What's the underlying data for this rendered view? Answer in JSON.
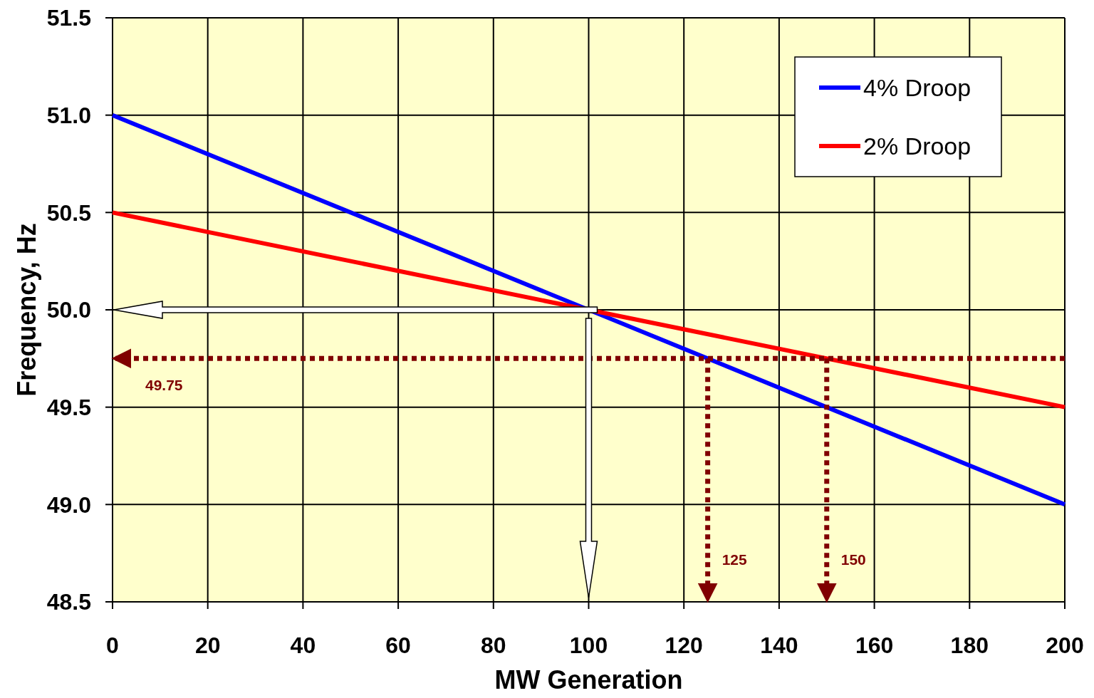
{
  "chart_data": {
    "type": "line",
    "xlabel": "MW Generation",
    "ylabel": "Frequency, Hz",
    "xlim": [
      0,
      200
    ],
    "xticks": [
      0,
      20,
      40,
      60,
      80,
      100,
      120,
      140,
      160,
      180,
      200
    ],
    "x": [
      0,
      200
    ],
    "ylim": [
      48.5,
      51.5
    ],
    "yticks": [
      48.5,
      {
        "value": 49,
        "label": "49.0"
      },
      49.5,
      {
        "value": 50,
        "label": "50.0"
      },
      50.5,
      {
        "value": 51,
        "label": "51.0"
      },
      51.5
    ],
    "series": [
      {
        "name": "4% Droop",
        "color": "#0000ff",
        "values": [
          51,
          49
        ]
      },
      {
        "name": "2% Droop",
        "color": "#ff0000",
        "values": [
          50.5,
          49.5
        ]
      }
    ],
    "ref_lines": [
      {
        "axis": "y",
        "value": 49.75,
        "label": "49.75",
        "color": "#800000",
        "line_style": "dotted"
      },
      {
        "axis": "x",
        "value": 125,
        "label": "125",
        "color": "#800000",
        "line_style": "dotted"
      },
      {
        "axis": "x",
        "value": 150,
        "label": "150",
        "color": "#800000",
        "line_style": "dotted"
      }
    ],
    "grid": true,
    "legend": "top right",
    "marker": "none",
    "line_style": "solid"
  }
}
